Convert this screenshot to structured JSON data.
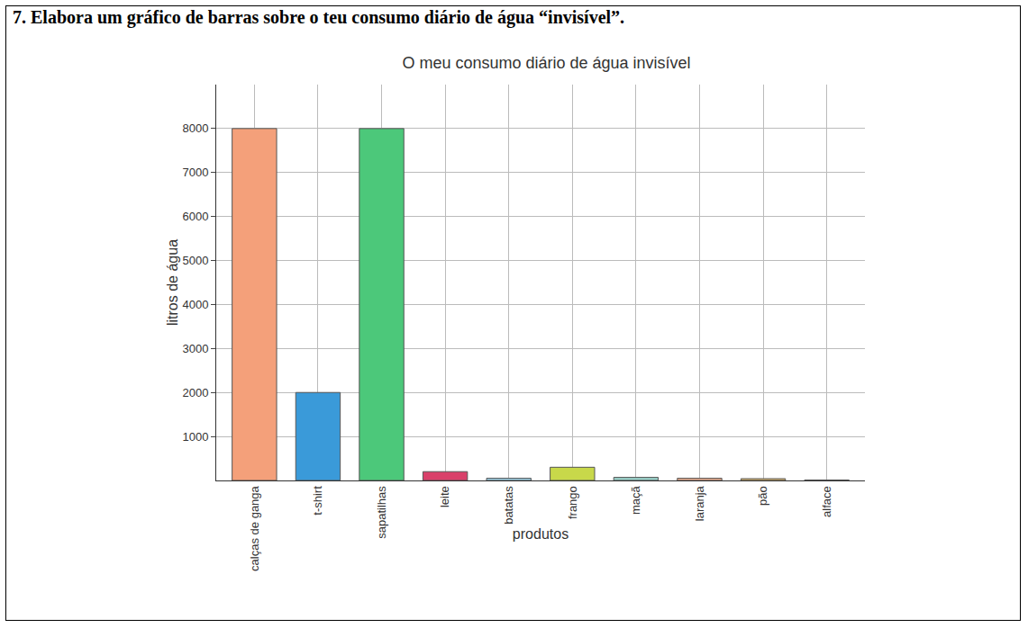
{
  "heading": "7. Elabora um gráfico de barras sobre o teu consumo diário de água “invisível”.",
  "chart_data": {
    "type": "bar",
    "title": "O meu consumo diário de água invisível",
    "x_label": "produtos",
    "y_label": "litros de água",
    "categories": [
      "calças de ganga",
      "t-shirt",
      "sapatilhas",
      "leite",
      "batatas",
      "frango",
      "maçã",
      "laranja",
      "pão",
      "alface"
    ],
    "values": [
      8000,
      2000,
      8000,
      200,
      50,
      300,
      70,
      50,
      40,
      10
    ],
    "colors": [
      "#f4a07a",
      "#3a9ad9",
      "#4cc87a",
      "#d9406a",
      "#9fd3e8",
      "#c8d84a",
      "#9ad0c8",
      "#f0b090",
      "#e8c070",
      "#a0c8e0"
    ],
    "ylim": [
      0,
      9000
    ],
    "yticks": [
      1000,
      2000,
      3000,
      4000,
      5000,
      6000,
      7000,
      8000
    ],
    "grid": true
  }
}
